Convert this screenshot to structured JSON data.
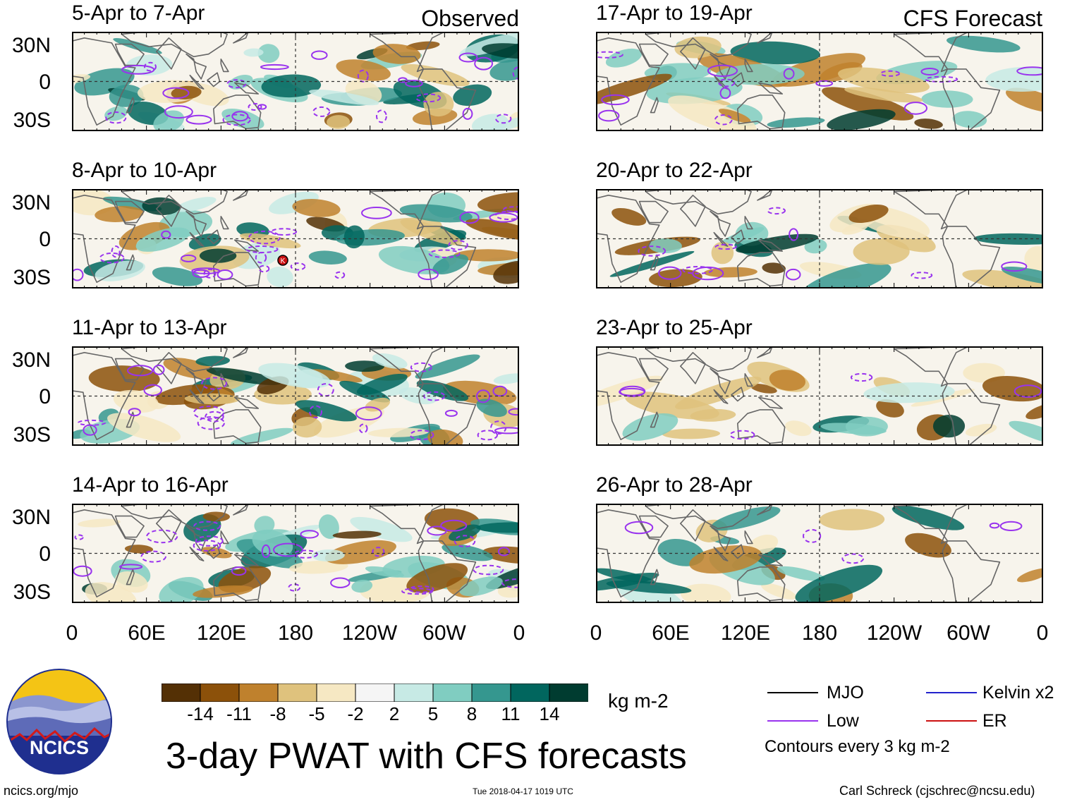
{
  "labels": {
    "observed": "Observed",
    "forecast": "CFS Forecast"
  },
  "panels": [
    {
      "title": "5-Apr to 7-Apr"
    },
    {
      "title": "8-Apr to 10-Apr"
    },
    {
      "title": "11-Apr to 13-Apr"
    },
    {
      "title": "14-Apr to 16-Apr"
    },
    {
      "title": "17-Apr to 19-Apr"
    },
    {
      "title": "20-Apr to 22-Apr"
    },
    {
      "title": "23-Apr to 25-Apr"
    },
    {
      "title": "26-Apr to 28-Apr"
    }
  ],
  "lat_labels": [
    "30N",
    "0",
    "30S"
  ],
  "lon_labels": [
    "0",
    "60E",
    "120E",
    "180",
    "120W",
    "60W",
    "0"
  ],
  "colorbar": {
    "colors": [
      "#543005",
      "#8c510a",
      "#bf812d",
      "#dfc27d",
      "#f6e8c3",
      "#f5f5f5",
      "#c7eae5",
      "#80cdc1",
      "#35978f",
      "#01665e",
      "#003c30"
    ],
    "ticks": [
      "-14",
      "-11",
      "-8",
      "-5",
      "-2",
      "2",
      "5",
      "8",
      "11",
      "14"
    ],
    "units": "kg m-2"
  },
  "legend": {
    "items": [
      {
        "label": "MJO",
        "color": "#000000"
      },
      {
        "label": "Kelvin x2",
        "color": "#2222cc"
      },
      {
        "label": "Low",
        "color": "#9933ee"
      },
      {
        "label": "ER",
        "color": "#cc1111"
      }
    ],
    "note": "Contours every 3 kg m-2"
  },
  "title": "3-day PWAT with CFS forecasts",
  "logo_text": "NCICS",
  "footer": {
    "url": "ncics.org/mjo",
    "timestamp": "Tue 2018-04-17 1019 UTC",
    "author": "Carl Schreck (cjschrec@ncsu.edu)"
  },
  "storm_marker": "K"
}
